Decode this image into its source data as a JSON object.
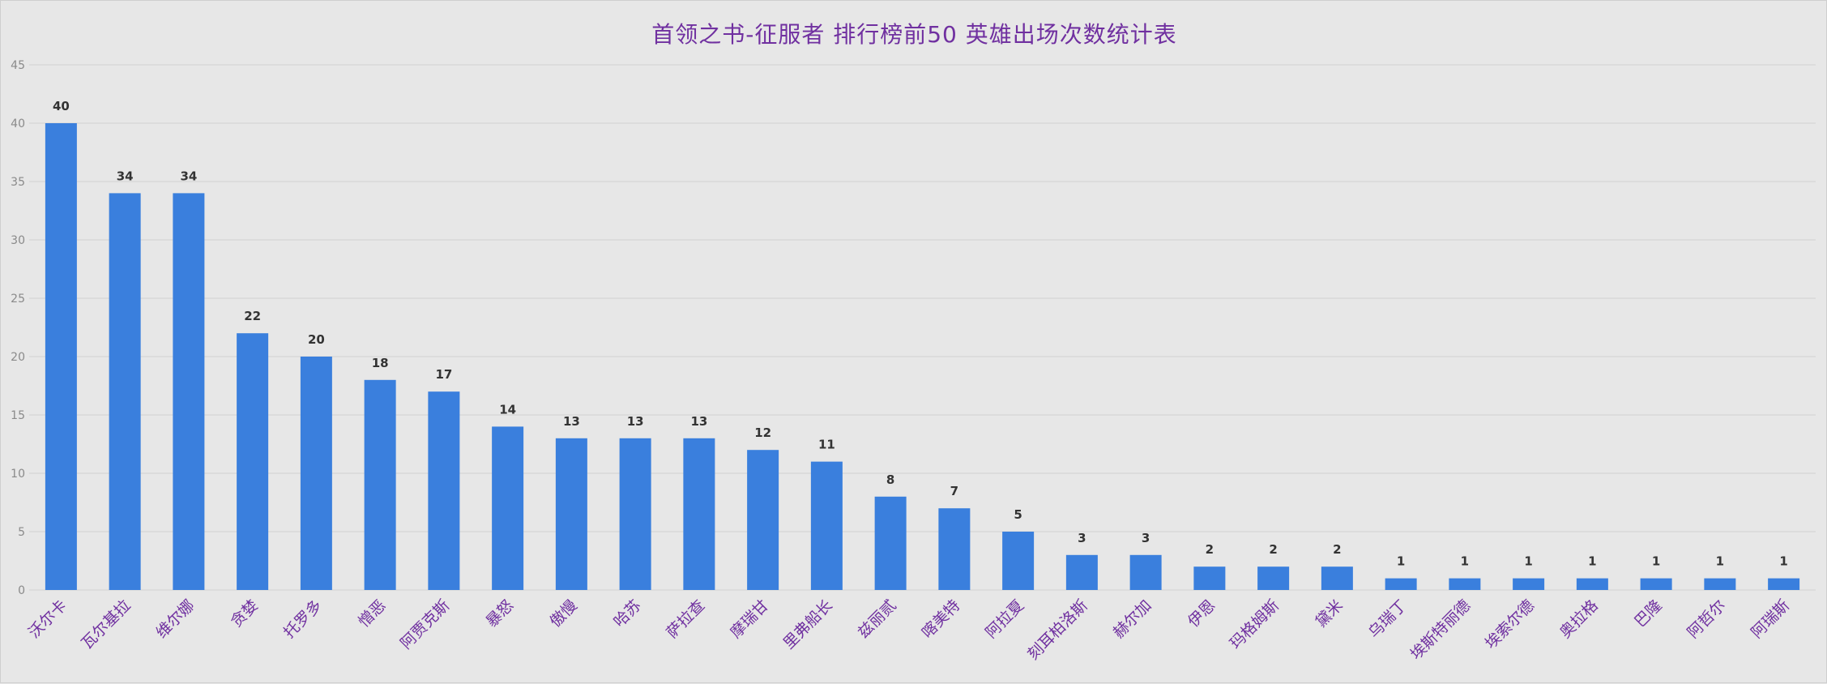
{
  "chart_data": {
    "type": "bar",
    "title": "首领之书-征服者 排行榜前50 英雄出场次数统计表",
    "xlabel": "",
    "ylabel": "",
    "ylim": [
      0,
      45
    ],
    "yticks": [
      0,
      5,
      10,
      15,
      20,
      25,
      30,
      35,
      40,
      45
    ],
    "grid": true,
    "legend": "none",
    "bar_color": "#3a7fdd",
    "title_color": "#7030a0",
    "category_label_color": "#7030a0",
    "categories": [
      "沃尔卡",
      "瓦尔基拉",
      "维尔娜",
      "贪婪",
      "托罗多",
      "憎恶",
      "阿贾克斯",
      "暴怒",
      "傲慢",
      "哈苏",
      "萨拉查",
      "摩瑞甘",
      "里弗船长",
      "兹丽贰",
      "喀美特",
      "阿拉夏",
      "刻耳柏洛斯",
      "赫尔加",
      "伊恩",
      "玛格姆斯",
      "黛米",
      "乌瑞丁",
      "埃斯特丽德",
      "埃索尔德",
      "奥拉格",
      "巴隆",
      "阿哲尔",
      "阿瑞斯"
    ],
    "values": [
      40,
      34,
      34,
      22,
      20,
      18,
      17,
      14,
      13,
      13,
      13,
      12,
      11,
      8,
      7,
      5,
      3,
      3,
      2,
      2,
      2,
      1,
      1,
      1,
      1,
      1,
      1,
      1
    ]
  }
}
